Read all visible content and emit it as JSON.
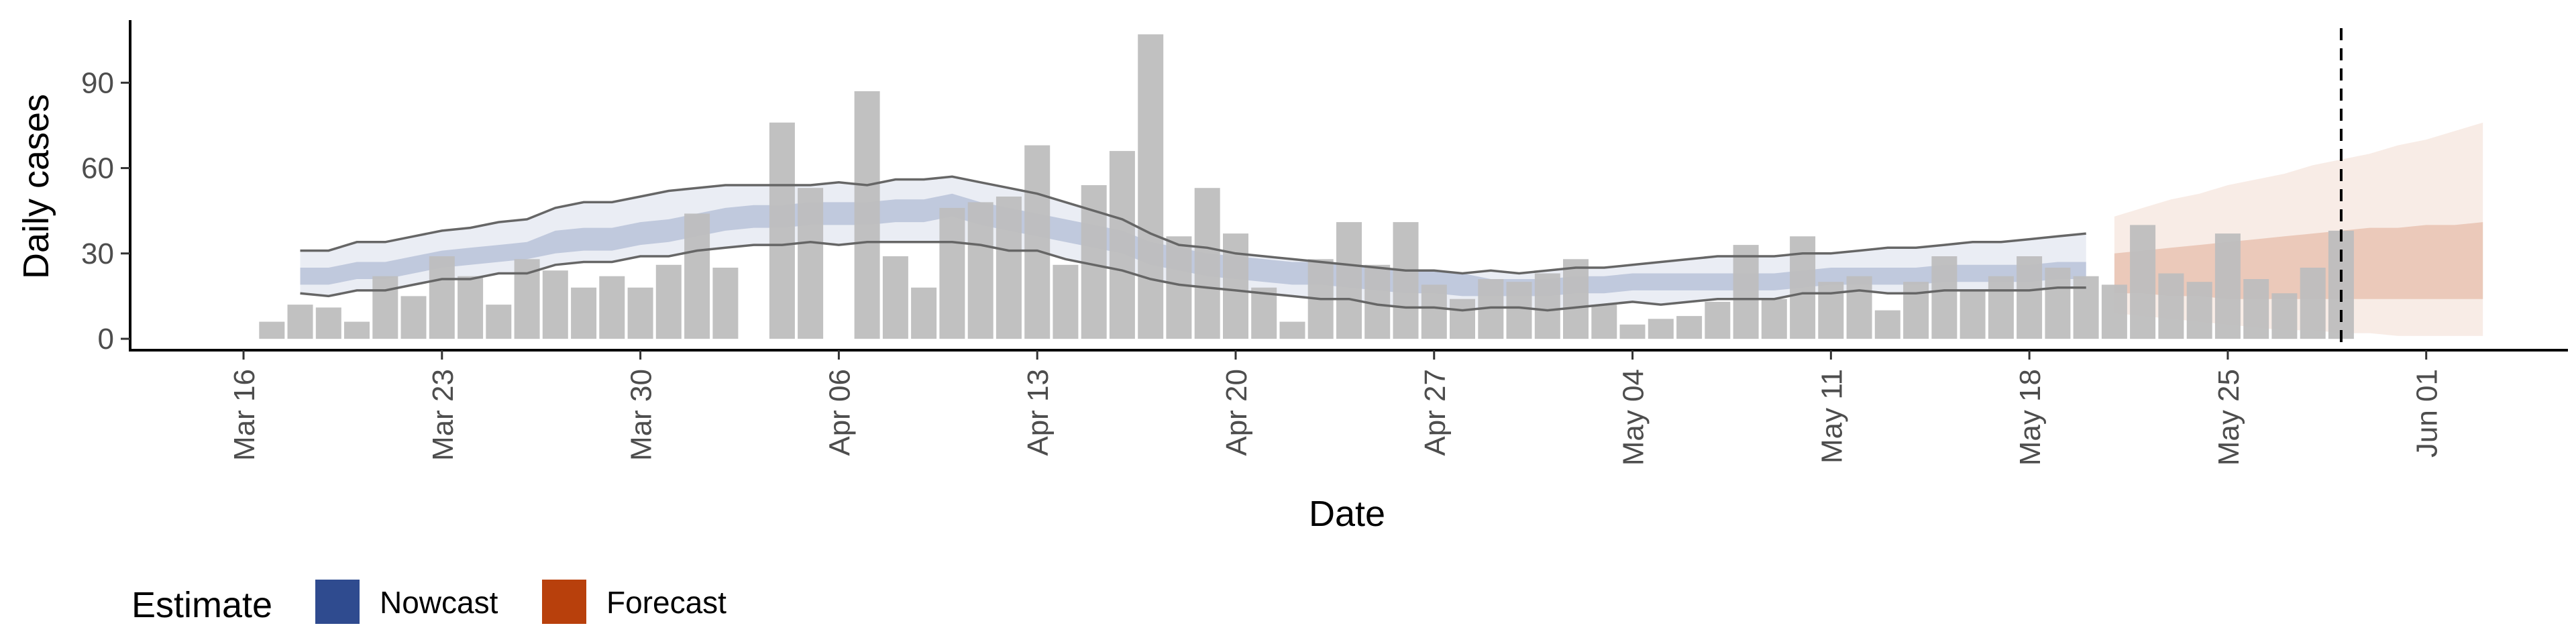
{
  "chart_data": {
    "type": "bar",
    "xlabel": "Date",
    "ylabel": "Daily cases",
    "x_ticks": [
      "Mar 16",
      "Mar 23",
      "Mar 30",
      "Apr 06",
      "Apr 13",
      "Apr 20",
      "Apr 27",
      "May 04",
      "May 11",
      "May 18",
      "May 25",
      "Jun 01"
    ],
    "y_ticks": [
      0,
      30,
      60,
      90
    ],
    "ylim": [
      -4,
      112
    ],
    "xlim": [
      "2020-03-12",
      "2020-06-06"
    ],
    "start_date": "2020-03-17",
    "cases": [
      6,
      12,
      11,
      6,
      22,
      15,
      29,
      22,
      12,
      28,
      24,
      18,
      22,
      18,
      26,
      44,
      25,
      0,
      76,
      53,
      0,
      87,
      29,
      18,
      46,
      48,
      50,
      68,
      26,
      54,
      66,
      107,
      36,
      53,
      37,
      18,
      6,
      28,
      41,
      26,
      41,
      19,
      14,
      21,
      20,
      23,
      28,
      12,
      5,
      7,
      8,
      13,
      33,
      14,
      36,
      20,
      22,
      10,
      20,
      29,
      17,
      22,
      29,
      25,
      22,
      19,
      40,
      23,
      20,
      37,
      21,
      16,
      25,
      38
    ],
    "nowcast": {
      "start_date": "2020-03-18",
      "median": [
        22,
        22,
        24,
        24,
        26,
        28,
        29,
        30,
        31,
        34,
        35,
        35,
        37,
        38,
        40,
        42,
        43,
        43,
        44,
        44,
        44,
        45,
        45,
        47,
        44,
        42,
        40,
        38,
        36,
        34,
        30,
        28,
        26,
        25,
        24,
        23,
        23,
        22,
        21,
        20,
        20,
        19,
        18,
        18,
        18,
        19,
        19,
        20,
        20,
        20,
        20,
        20,
        20,
        21,
        22,
        22,
        22,
        22,
        23,
        23,
        23,
        23,
        24,
        24
      ],
      "inner": [
        [
          19,
          25
        ],
        [
          19,
          25
        ],
        [
          21,
          27
        ],
        [
          21,
          27
        ],
        [
          23,
          29
        ],
        [
          25,
          31
        ],
        [
          26,
          32
        ],
        [
          27,
          33
        ],
        [
          28,
          34
        ],
        [
          30,
          38
        ],
        [
          31,
          39
        ],
        [
          31,
          39
        ],
        [
          33,
          41
        ],
        [
          34,
          42
        ],
        [
          36,
          44
        ],
        [
          38,
          46
        ],
        [
          39,
          47
        ],
        [
          39,
          47
        ],
        [
          40,
          48
        ],
        [
          40,
          48
        ],
        [
          40,
          48
        ],
        [
          41,
          49
        ],
        [
          41,
          49
        ],
        [
          43,
          51
        ],
        [
          40,
          48
        ],
        [
          38,
          46
        ],
        [
          36,
          44
        ],
        [
          34,
          42
        ],
        [
          32,
          40
        ],
        [
          30,
          38
        ],
        [
          26,
          34
        ],
        [
          24,
          32
        ],
        [
          22,
          30
        ],
        [
          21,
          29
        ],
        [
          20,
          28
        ],
        [
          19,
          27
        ],
        [
          19,
          27
        ],
        [
          18,
          26
        ],
        [
          17,
          25
        ],
        [
          16,
          24
        ],
        [
          16,
          24
        ],
        [
          15,
          23
        ],
        [
          15,
          21
        ],
        [
          15,
          21
        ],
        [
          15,
          21
        ],
        [
          16,
          22
        ],
        [
          16,
          22
        ],
        [
          17,
          23
        ],
        [
          17,
          23
        ],
        [
          17,
          23
        ],
        [
          17,
          23
        ],
        [
          17,
          23
        ],
        [
          17,
          23
        ],
        [
          18,
          24
        ],
        [
          19,
          25
        ],
        [
          19,
          25
        ],
        [
          19,
          25
        ],
        [
          19,
          25
        ],
        [
          20,
          26
        ],
        [
          20,
          26
        ],
        [
          20,
          26
        ],
        [
          20,
          26
        ],
        [
          21,
          27
        ],
        [
          21,
          27
        ]
      ],
      "outer": [
        [
          16,
          31
        ],
        [
          15,
          31
        ],
        [
          17,
          34
        ],
        [
          17,
          34
        ],
        [
          19,
          36
        ],
        [
          21,
          38
        ],
        [
          21,
          39
        ],
        [
          23,
          41
        ],
        [
          23,
          42
        ],
        [
          26,
          46
        ],
        [
          27,
          48
        ],
        [
          27,
          48
        ],
        [
          29,
          50
        ],
        [
          29,
          52
        ],
        [
          31,
          53
        ],
        [
          32,
          54
        ],
        [
          33,
          54
        ],
        [
          33,
          54
        ],
        [
          34,
          54
        ],
        [
          33,
          55
        ],
        [
          34,
          54
        ],
        [
          34,
          56
        ],
        [
          34,
          56
        ],
        [
          34,
          57
        ],
        [
          33,
          55
        ],
        [
          31,
          53
        ],
        [
          31,
          51
        ],
        [
          28,
          48
        ],
        [
          26,
          45
        ],
        [
          24,
          42
        ],
        [
          21,
          37
        ],
        [
          19,
          33
        ],
        [
          18,
          32
        ],
        [
          17,
          30
        ],
        [
          16,
          29
        ],
        [
          15,
          28
        ],
        [
          14,
          27
        ],
        [
          14,
          26
        ],
        [
          12,
          25
        ],
        [
          11,
          24
        ],
        [
          11,
          24
        ],
        [
          10,
          23
        ],
        [
          11,
          24
        ],
        [
          11,
          23
        ],
        [
          10,
          24
        ],
        [
          11,
          25
        ],
        [
          12,
          25
        ],
        [
          13,
          26
        ],
        [
          12,
          27
        ],
        [
          13,
          28
        ],
        [
          14,
          29
        ],
        [
          14,
          29
        ],
        [
          14,
          29
        ],
        [
          16,
          30
        ],
        [
          16,
          30
        ],
        [
          17,
          31
        ],
        [
          16,
          32
        ],
        [
          16,
          32
        ],
        [
          17,
          33
        ],
        [
          17,
          34
        ],
        [
          17,
          34
        ],
        [
          17,
          35
        ],
        [
          18,
          36
        ],
        [
          18,
          37
        ]
      ]
    },
    "forecast": {
      "start_date": "2020-05-21",
      "inner": [
        [
          16,
          30
        ],
        [
          16,
          31
        ],
        [
          15,
          32
        ],
        [
          15,
          33
        ],
        [
          14,
          34
        ],
        [
          14,
          35
        ],
        [
          14,
          36
        ],
        [
          14,
          37
        ],
        [
          14,
          38
        ],
        [
          14,
          39
        ],
        [
          14,
          39
        ],
        [
          14,
          40
        ],
        [
          14,
          40
        ],
        [
          14,
          41
        ]
      ],
      "outer": [
        [
          9,
          43
        ],
        [
          8,
          46
        ],
        [
          7,
          49
        ],
        [
          6,
          51
        ],
        [
          5,
          54
        ],
        [
          4,
          56
        ],
        [
          3,
          58
        ],
        [
          3,
          61
        ],
        [
          2,
          63
        ],
        [
          2,
          65
        ],
        [
          1,
          68
        ],
        [
          1,
          70
        ],
        [
          1,
          73
        ],
        [
          1,
          76
        ]
      ]
    },
    "cutoff_date": "2020-05-29",
    "colors": {
      "bars": "#bebebe",
      "nowcast": "#2f4b8f",
      "forecast": "#b8400c",
      "outline": "#666666"
    },
    "legend": {
      "title": "Estimate",
      "position": "bottom-left",
      "items": [
        {
          "label": "Nowcast",
          "color": "#2f4b8f"
        },
        {
          "label": "Forecast",
          "color": "#b8400c"
        }
      ]
    },
    "grid": false
  }
}
